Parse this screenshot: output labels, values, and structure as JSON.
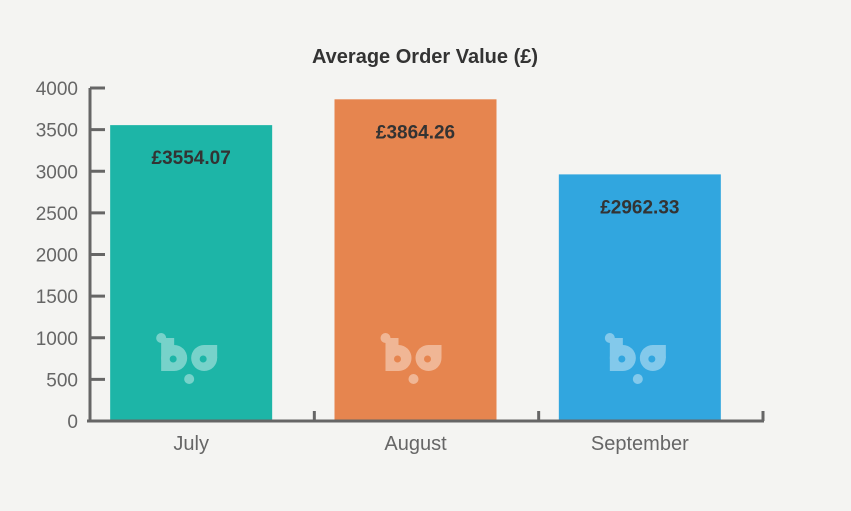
{
  "chart_data": {
    "type": "bar",
    "title": "Average Order Value (£)",
    "xlabel": "",
    "ylabel": "",
    "categories": [
      "July",
      "August",
      "September"
    ],
    "values": [
      3554.07,
      3864.26,
      2962.33
    ],
    "data_labels": [
      "£3554.07",
      "£3864.26",
      "£2962.33"
    ],
    "yticks": [
      0,
      500,
      1000,
      1500,
      2000,
      2500,
      3000,
      3500,
      4000
    ],
    "ytick_labels": [
      "0",
      "500",
      "1000",
      "1500",
      "2000",
      "2500",
      "3000",
      "3500",
      "4000"
    ],
    "ylim": [
      0,
      4000
    ],
    "grid": false,
    "legend": "none",
    "colors": [
      "#1db5a7",
      "#e6854f",
      "#31a6df"
    ],
    "axis_color": "#666666",
    "watermark": "bp"
  }
}
